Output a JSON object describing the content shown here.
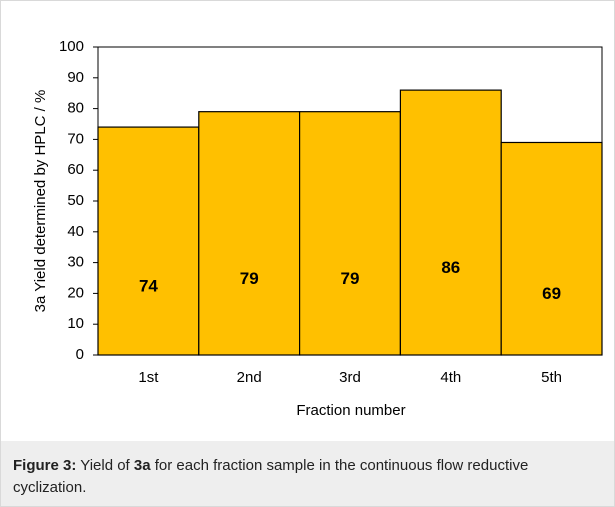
{
  "chart_data": {
    "type": "bar",
    "xlabel": "Fraction number",
    "ylabel": "3a Yield determined by HPLC / %",
    "categories": [
      "1st",
      "2nd",
      "3rd",
      "4th",
      "5th"
    ],
    "values": [
      74,
      79,
      79,
      86,
      69
    ],
    "color": "#ffc000",
    "ylim": [
      0,
      100
    ],
    "yticks": [
      0,
      10,
      20,
      30,
      40,
      50,
      60,
      70,
      80,
      90,
      100
    ],
    "grid": false
  },
  "caption": {
    "label": "Figure 3:",
    "text1": " Yield of ",
    "compound": "3a",
    "text2": " for each fraction sample in the continuous flow reductive cyclization."
  }
}
